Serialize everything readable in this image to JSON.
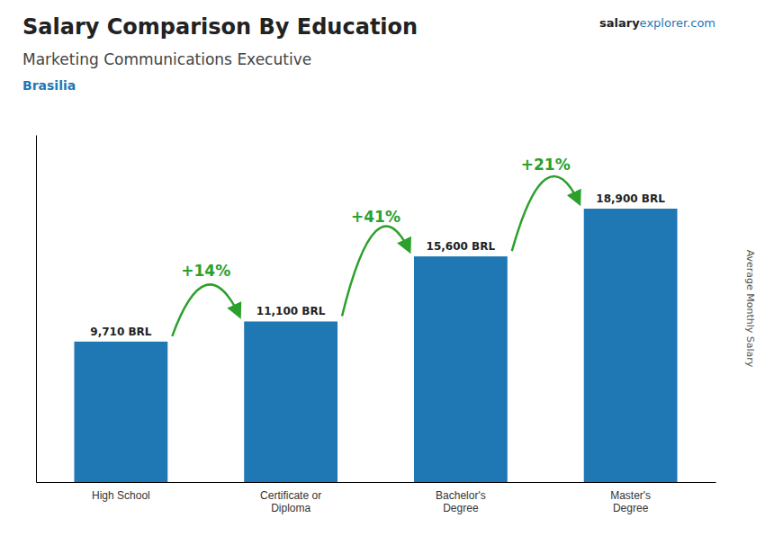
{
  "chart_data": {
    "type": "bar",
    "title": "Salary Comparison By Education",
    "subtitle": "Marketing Communications Executive",
    "city": "Brasilia",
    "website": [
      "salary",
      "explorer.com"
    ],
    "ylabel": "Average Monthly Salary",
    "categories": [
      "High School",
      "Certificate or\nDiploma",
      "Bachelor's\nDegree",
      "Master's\nDegree"
    ],
    "values": [
      9710,
      11100,
      15600,
      18900
    ],
    "value_labels": [
      "9,710 BRL",
      "11,100 BRL",
      "15,600 BRL",
      "18,900 BRL"
    ],
    "data_labels": true,
    "annotations": [
      "+14%",
      "+41%",
      "+21%"
    ],
    "ylim": [
      0,
      24000
    ],
    "tick_labels": "x",
    "grid": false
  }
}
